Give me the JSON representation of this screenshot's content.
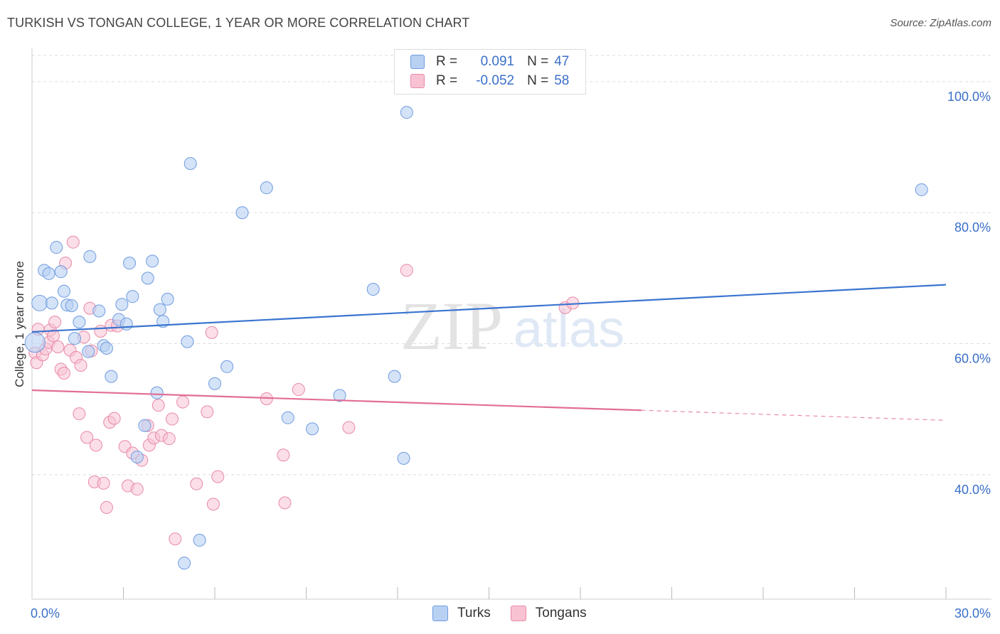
{
  "title": "TURKISH VS TONGAN COLLEGE, 1 YEAR OR MORE CORRELATION CHART",
  "source": "Source: ZipAtlas.com",
  "watermark": {
    "zip": "ZIP",
    "atlas": "atlas"
  },
  "legend": {
    "turks": {
      "r_label": "R =",
      "r_value": "0.091",
      "n_label": "N =",
      "n_value": "47"
    },
    "tongans": {
      "r_label": "R =",
      "r_value": "-0.052",
      "n_label": "N =",
      "n_value": "58"
    }
  },
  "bottom_legend": {
    "turks": "Turks",
    "tongans": "Tongans"
  },
  "colors": {
    "turks_fill": "#b8d1f3",
    "turks_stroke": "#6f9be0",
    "turks_line": "#3a74d0",
    "tongans_fill": "#f8c2d3",
    "tongans_stroke": "#e88aa8",
    "tongans_line": "#e26e98",
    "axis_text": "#3a6fc8",
    "grid": "#dddddd"
  },
  "chart_data": {
    "type": "scatter",
    "title": "TURKISH VS TONGAN COLLEGE, 1 YEAR OR MORE CORRELATION CHART",
    "xlabel": "",
    "ylabel": "College, 1 year or more",
    "xlim": [
      0,
      30
    ],
    "ylim": [
      21,
      104
    ],
    "x_tick_labels": [
      {
        "value": 0,
        "label": "0.0%"
      },
      {
        "value": 30,
        "label": "30.0%"
      }
    ],
    "y_tick_labels": [
      {
        "value": 100,
        "label": "100.0%"
      },
      {
        "value": 80,
        "label": "80.0%"
      },
      {
        "value": 60,
        "label": "60.0%"
      },
      {
        "value": 40,
        "label": "40.0%"
      }
    ],
    "series": [
      {
        "name": "Turks",
        "r": 0.091,
        "n": 47,
        "trend": {
          "x0": 0,
          "y0": 61.8,
          "x1": 30,
          "y1": 69.0,
          "dashed_from": null
        },
        "points": [
          [
            0.1,
            60.2
          ],
          [
            0.25,
            66.2
          ],
          [
            0.4,
            71.2
          ],
          [
            0.55,
            70.7
          ],
          [
            0.65,
            66.2
          ],
          [
            0.8,
            74.7
          ],
          [
            0.95,
            71.0
          ],
          [
            1.05,
            68.0
          ],
          [
            1.15,
            65.9
          ],
          [
            1.3,
            65.8
          ],
          [
            1.4,
            60.8
          ],
          [
            1.55,
            63.3
          ],
          [
            1.9,
            73.3
          ],
          [
            2.2,
            65.0
          ],
          [
            2.35,
            59.7
          ],
          [
            2.45,
            59.3
          ],
          [
            2.6,
            55.0
          ],
          [
            2.85,
            63.7
          ],
          [
            2.95,
            66.0
          ],
          [
            3.1,
            63.0
          ],
          [
            3.2,
            72.3
          ],
          [
            3.3,
            67.2
          ],
          [
            3.45,
            42.7
          ],
          [
            3.7,
            47.5
          ],
          [
            3.8,
            70.0
          ],
          [
            3.95,
            72.6
          ],
          [
            4.1,
            52.5
          ],
          [
            4.2,
            65.2
          ],
          [
            4.3,
            63.4
          ],
          [
            4.45,
            66.8
          ],
          [
            5.0,
            26.5
          ],
          [
            5.1,
            60.3
          ],
          [
            5.2,
            87.5
          ],
          [
            5.5,
            30.0
          ],
          [
            6.0,
            53.9
          ],
          [
            6.4,
            56.5
          ],
          [
            6.9,
            80.0
          ],
          [
            7.7,
            83.8
          ],
          [
            8.4,
            48.7
          ],
          [
            9.2,
            47.0
          ],
          [
            10.1,
            52.1
          ],
          [
            11.2,
            68.3
          ],
          [
            11.9,
            55.0
          ],
          [
            12.2,
            42.5
          ],
          [
            12.3,
            95.3
          ],
          [
            29.2,
            83.5
          ],
          [
            1.85,
            58.8
          ]
        ]
      },
      {
        "name": "Tongans",
        "r": -0.052,
        "n": 58,
        "trend": {
          "x0": 0,
          "y0": 52.9,
          "x1": 30,
          "y1": 48.3,
          "dashed_from": 20
        },
        "points": [
          [
            0.1,
            58.6
          ],
          [
            0.15,
            57.1
          ],
          [
            0.2,
            62.2
          ],
          [
            0.35,
            58.3
          ],
          [
            0.45,
            59.2
          ],
          [
            0.55,
            60.2
          ],
          [
            0.6,
            62.1
          ],
          [
            0.7,
            61.2
          ],
          [
            0.75,
            63.3
          ],
          [
            0.85,
            59.5
          ],
          [
            0.95,
            56.1
          ],
          [
            1.05,
            55.5
          ],
          [
            1.1,
            72.3
          ],
          [
            1.25,
            59.0
          ],
          [
            1.35,
            75.5
          ],
          [
            1.45,
            57.9
          ],
          [
            1.55,
            49.3
          ],
          [
            1.6,
            56.7
          ],
          [
            1.7,
            61.0
          ],
          [
            1.8,
            45.7
          ],
          [
            1.9,
            65.4
          ],
          [
            1.95,
            58.9
          ],
          [
            2.05,
            38.9
          ],
          [
            2.1,
            44.5
          ],
          [
            2.25,
            61.9
          ],
          [
            2.35,
            38.7
          ],
          [
            2.45,
            35.0
          ],
          [
            2.55,
            48.0
          ],
          [
            2.6,
            62.8
          ],
          [
            2.7,
            48.6
          ],
          [
            2.8,
            62.7
          ],
          [
            3.05,
            44.3
          ],
          [
            3.15,
            38.3
          ],
          [
            3.3,
            43.3
          ],
          [
            3.45,
            37.8
          ],
          [
            3.6,
            42.2
          ],
          [
            3.8,
            47.5
          ],
          [
            3.85,
            44.5
          ],
          [
            4.0,
            45.6
          ],
          [
            4.15,
            50.6
          ],
          [
            4.25,
            46.0
          ],
          [
            4.5,
            45.5
          ],
          [
            4.6,
            48.5
          ],
          [
            4.7,
            30.2
          ],
          [
            4.95,
            51.1
          ],
          [
            5.4,
            38.6
          ],
          [
            5.75,
            49.6
          ],
          [
            5.9,
            61.7
          ],
          [
            5.95,
            35.5
          ],
          [
            6.1,
            39.7
          ],
          [
            7.7,
            51.6
          ],
          [
            8.25,
            43.0
          ],
          [
            8.3,
            35.7
          ],
          [
            8.75,
            53.0
          ],
          [
            10.4,
            47.2
          ],
          [
            12.3,
            71.2
          ],
          [
            17.5,
            65.5
          ],
          [
            17.75,
            66.2
          ]
        ]
      }
    ]
  }
}
